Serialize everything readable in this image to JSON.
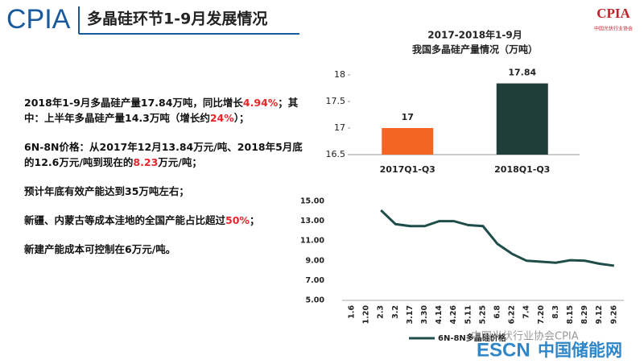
{
  "header": {
    "logo": "CPIA",
    "title": "多晶硅环节1-9月发展情况",
    "badge": "CPIA",
    "badge_sub": "中国光伏行业协会"
  },
  "text": {
    "paragraphs": [
      {
        "segments": [
          {
            "text": "2018年1-9月多晶硅产量17.84万吨，同比增长"
          },
          {
            "text": "4.94%",
            "color": "#e8262a"
          },
          {
            "text": "；其中：上半年多晶硅产量14.3万吨（增长约"
          },
          {
            "text": "24%",
            "color": "#e8262a"
          },
          {
            "text": "）；"
          }
        ]
      },
      {
        "segments": [
          {
            "text": "6N-8N价格：从2017年12月13.84万元/吨、2018年5月底的12.6万元/吨到现在的"
          },
          {
            "text": "8.23",
            "color": "#e8262a"
          },
          {
            "text": "万元/吨；"
          }
        ]
      },
      {
        "segments": [
          {
            "text": "预计年底有效产能达到35万吨左右；"
          }
        ]
      },
      {
        "segments": [
          {
            "text": "新疆、内蒙古等成本洼地的全国产能占比超过"
          },
          {
            "text": "50%",
            "color": "#e8262a"
          },
          {
            "text": "；"
          }
        ]
      },
      {
        "segments": [
          {
            "text": "新建产能成本可控制在6万元/吨。"
          }
        ]
      }
    ]
  },
  "chart_data": [
    {
      "type": "bar",
      "title": "2017-2018年1-9月",
      "subtitle": "我国多晶硅产量情况（万吨）",
      "categories": [
        "2017Q1-Q3",
        "2018Q1-Q3"
      ],
      "values": [
        17,
        17.84
      ],
      "colors": [
        "#f26522",
        "#1e3d3b"
      ],
      "ylim": [
        16.5,
        18
      ],
      "yticks": [
        16.5,
        17,
        17.5,
        18
      ],
      "grid": false
    },
    {
      "type": "line",
      "categories": [
        "1.6",
        "1.20",
        "2.3",
        "3.2",
        "3.17",
        "3.30",
        "4.14",
        "4.26",
        "5.11",
        "5.25",
        "6.8",
        "6.22",
        "7.4",
        "7.20",
        "8.3",
        "8.15",
        "8.29",
        "9.12",
        "9.26"
      ],
      "series": [
        {
          "name": "6N-8N多晶硅价格",
          "color": "#1f4e4a",
          "values": [
            null,
            null,
            14.1,
            12.7,
            12.5,
            12.5,
            13.0,
            13.0,
            12.6,
            12.5,
            10.7,
            9.7,
            9.0,
            8.9,
            8.8,
            9.05,
            9.0,
            8.7,
            8.5
          ]
        }
      ],
      "ylim": [
        5,
        15
      ],
      "yticks": [
        {
          "value": 5,
          "label": "5.00"
        },
        {
          "value": 7,
          "label": "7.00"
        },
        {
          "value": 9,
          "label": "9.00"
        },
        {
          "value": 11,
          "label": "11.00"
        },
        {
          "value": 13,
          "label": "13.00"
        },
        {
          "value": 15,
          "label": "15.00"
        }
      ],
      "grid": false
    }
  ],
  "watermark": {
    "wechat": "中国光伏行业协会CPIA",
    "site_a": "ESCN",
    "site_b": "中国储能网"
  }
}
